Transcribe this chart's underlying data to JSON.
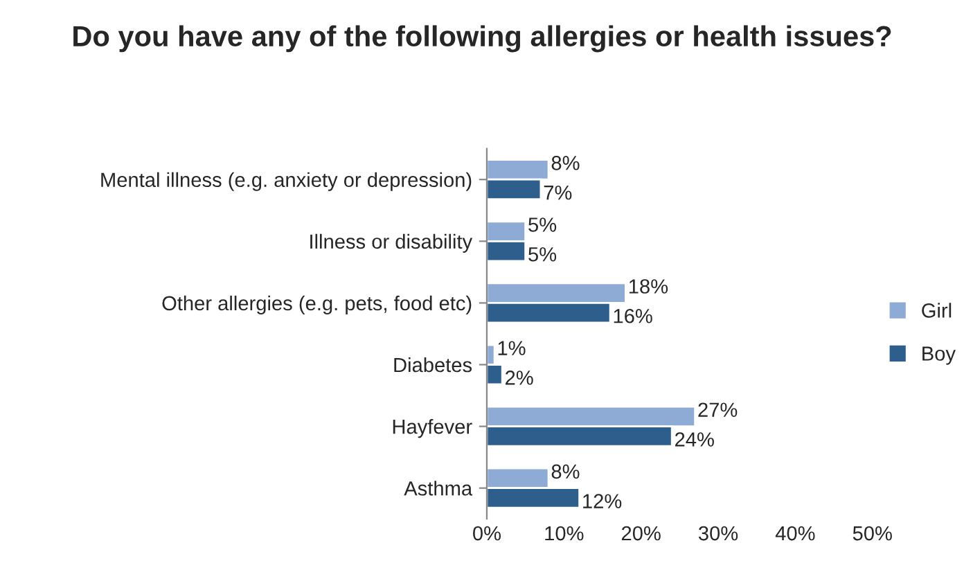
{
  "chart_data": {
    "type": "bar",
    "orientation": "horizontal",
    "title": "Do you have any of the following allergies or health issues?",
    "categories": [
      "Mental illness (e.g. anxiety or depression)",
      "Illness or disability",
      "Other allergies (e.g. pets, food etc)",
      "Diabetes",
      "Hayfever",
      "Asthma"
    ],
    "series": [
      {
        "name": "Girl",
        "color": "#8eabd6",
        "values": [
          8,
          5,
          18,
          1,
          27,
          8
        ],
        "value_labels": [
          "8%",
          "5%",
          "18%",
          "1%",
          "27%",
          "8%"
        ]
      },
      {
        "name": "Boy",
        "color": "#2e5e8c",
        "values": [
          7,
          5,
          16,
          2,
          24,
          12
        ],
        "value_labels": [
          "7%",
          "5%",
          "16%",
          "2%",
          "24%",
          "12%"
        ]
      }
    ],
    "xlim": [
      0,
      50
    ],
    "xticks": [
      {
        "value": 0,
        "label": "0%"
      },
      {
        "value": 10,
        "label": "10%"
      },
      {
        "value": 20,
        "label": "20%"
      },
      {
        "value": 30,
        "label": "30%"
      },
      {
        "value": 40,
        "label": "40%"
      },
      {
        "value": 50,
        "label": "50%"
      }
    ],
    "legend": "right",
    "grid": false
  }
}
